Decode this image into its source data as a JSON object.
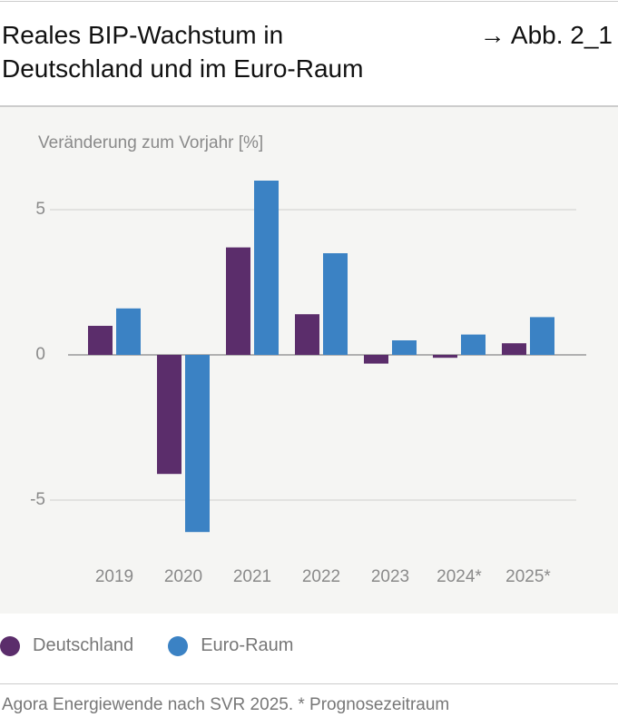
{
  "header": {
    "title": [
      "Reales BIP-Wachstum in",
      "Deutschland und im Euro-Raum"
    ],
    "figure_ref": "→ Abb. 2_1"
  },
  "chart_data": {
    "type": "bar",
    "y_label": "Veränderung zum Vorjahr [%]",
    "categories": [
      "2019",
      "2020",
      "2021",
      "2022",
      "2023",
      "2024*",
      "2025*"
    ],
    "series": [
      {
        "name": "Deutschland",
        "color": "#5b2d6b",
        "values": [
          1.0,
          -4.1,
          3.7,
          1.4,
          -0.3,
          -0.1,
          0.4
        ]
      },
      {
        "name": "Euro-Raum",
        "color": "#3b82c4",
        "values": [
          1.6,
          -6.1,
          6.0,
          3.5,
          0.5,
          0.7,
          1.3
        ]
      }
    ],
    "ylim": [
      -7,
      7
    ],
    "yticks": [
      5,
      0,
      -5
    ],
    "grid": true,
    "legend": "bottom"
  },
  "footer": {
    "source": "Agora Energiewende nach SVR 2025. * Prognosezeitraum"
  }
}
